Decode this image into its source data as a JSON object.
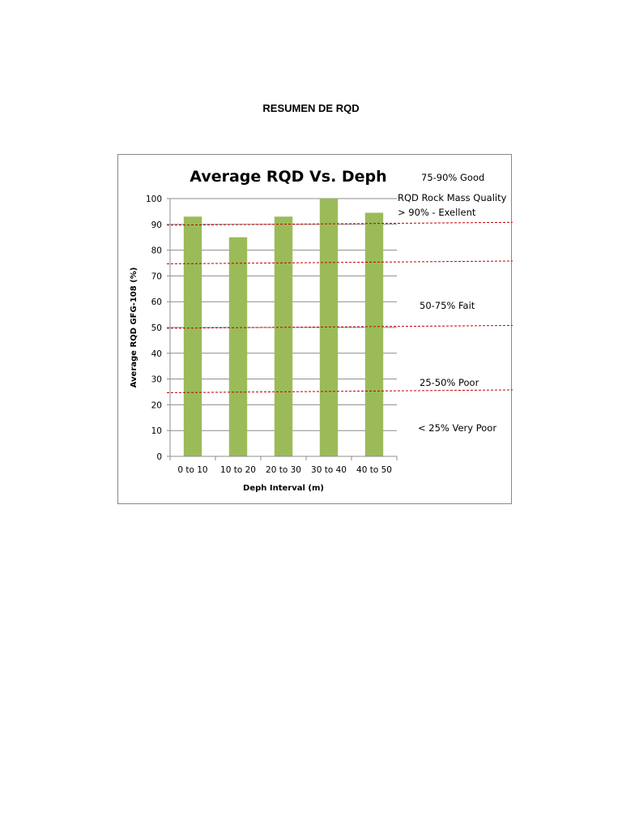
{
  "page": {
    "heading": "RESUMEN DE RQD"
  },
  "chart_data": {
    "type": "bar",
    "title": "Average RQD Vs. Deph",
    "xlabel": "Deph Interval (m)",
    "ylabel": "Average RQD GFG-108 (%)",
    "categories": [
      "0 to 10",
      "10 to 20",
      "20 to 30",
      "30 to 40",
      "40 to 50"
    ],
    "values": [
      93,
      85,
      93,
      100,
      94.5
    ],
    "ylim": [
      0,
      100
    ],
    "yticks": [
      0,
      10,
      20,
      30,
      40,
      50,
      60,
      70,
      80,
      90,
      100
    ],
    "grid": true,
    "bar_color": "#9BBB59",
    "threshold_color": "#C00000",
    "thresholds": [
      25,
      50,
      75,
      90
    ],
    "annotations": [
      "75-90% Good",
      "RQD Rock Mass Quality",
      "> 90% - Exellent",
      "50-75% Fait",
      "25-50% Poor",
      "< 25% Very Poor"
    ]
  }
}
